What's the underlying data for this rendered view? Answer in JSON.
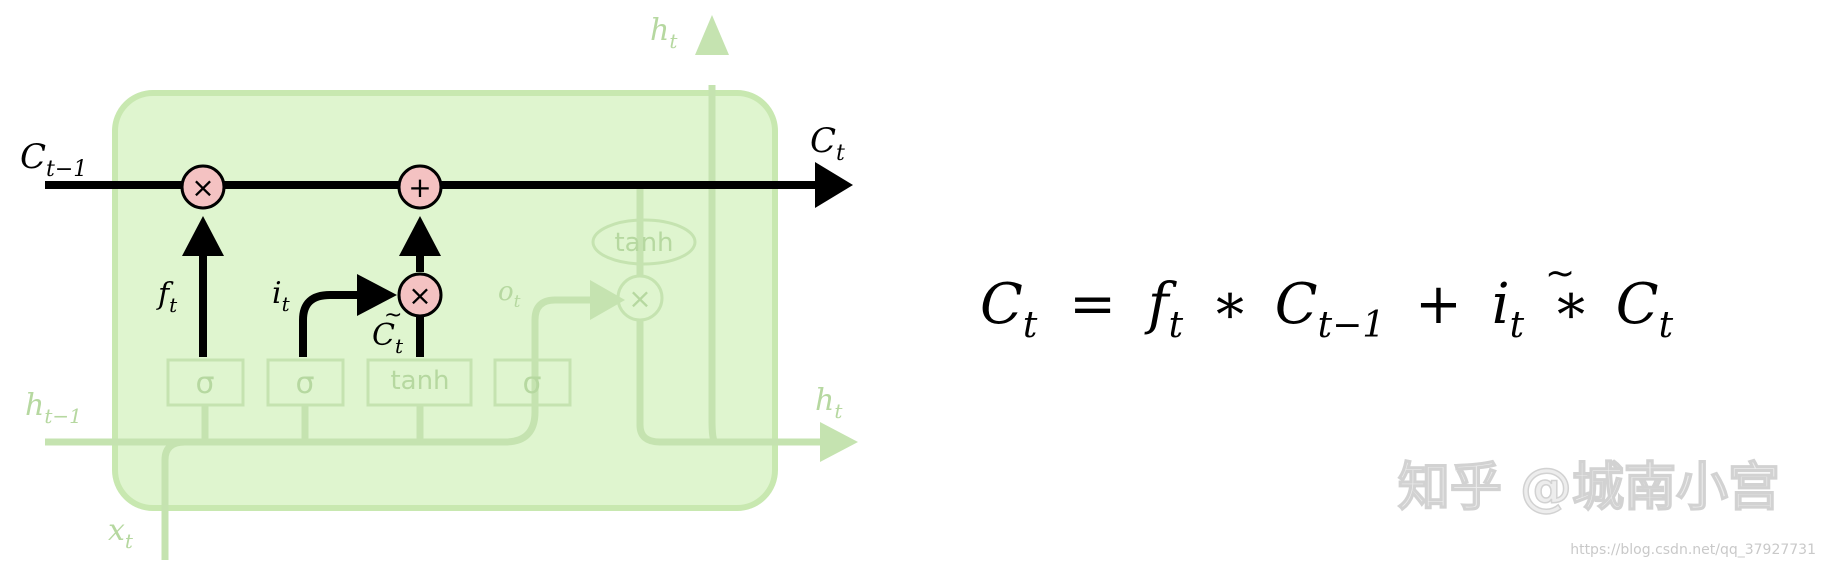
{
  "colors": {
    "cell_fill": "#dff5cf",
    "cell_stroke": "#c8e8b0",
    "faded": "#c5e3b0",
    "faded_text": "#b6d8a0",
    "active_line": "#000000",
    "op_fill": "#f4c2c2",
    "watermark": "#e6e6e6"
  },
  "labels": {
    "c_prev": "C",
    "c_prev_sub": "t−1",
    "c_out": "C",
    "c_out_sub": "t",
    "h_top": "h",
    "h_top_sub": "t",
    "h_right": "h",
    "h_right_sub": "t",
    "h_prev": "h",
    "h_prev_sub": "t−1",
    "x_in": "x",
    "x_in_sub": "t",
    "f_gate": "f",
    "f_gate_sub": "t",
    "i_gate": "i",
    "i_gate_sub": "t",
    "o_gate": "o",
    "o_gate_sub": "t",
    "c_tilde": "C",
    "c_tilde_sub": "t"
  },
  "ops": {
    "mul": "×",
    "add": "+"
  },
  "gates": {
    "sigma1": "σ",
    "sigma2": "σ",
    "tanh_gate": "tanh",
    "sigma3": "σ",
    "tanh_out": "tanh"
  },
  "equation": {
    "lhs": "C",
    "lhs_sub": "t",
    "eq": "=",
    "f": "f",
    "f_sub": "t",
    "star1": "∗",
    "c": "C",
    "c_sub": "t−1",
    "plus": "+",
    "i": "i",
    "i_sub": "t",
    "star2": "∗",
    "ct": "C",
    "ct_sub": "t"
  },
  "watermark": {
    "text": "知乎 @城南小宫",
    "url": "https://blog.csdn.net/qq_37927731"
  }
}
